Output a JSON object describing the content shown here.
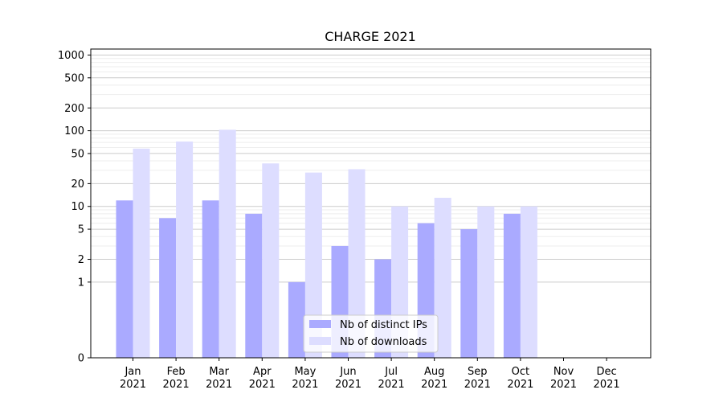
{
  "chart_data": {
    "type": "bar",
    "title": "CHARGE 2021",
    "xlabel": "",
    "ylabel": "",
    "yscale": "symlog",
    "ylim": [
      0,
      1200
    ],
    "yticks": [
      0,
      1,
      2,
      5,
      10,
      20,
      50,
      100,
      200,
      500,
      1000
    ],
    "ytick_labels": [
      "0",
      "1",
      "2",
      "5",
      "10",
      "20",
      "50",
      "100",
      "200",
      "500",
      "1000"
    ],
    "categories": [
      {
        "month": "Jan",
        "year": "2021"
      },
      {
        "month": "Feb",
        "year": "2021"
      },
      {
        "month": "Mar",
        "year": "2021"
      },
      {
        "month": "Apr",
        "year": "2021"
      },
      {
        "month": "May",
        "year": "2021"
      },
      {
        "month": "Jun",
        "year": "2021"
      },
      {
        "month": "Jul",
        "year": "2021"
      },
      {
        "month": "Aug",
        "year": "2021"
      },
      {
        "month": "Sep",
        "year": "2021"
      },
      {
        "month": "Oct",
        "year": "2021"
      },
      {
        "month": "Nov",
        "year": "2021"
      },
      {
        "month": "Dec",
        "year": "2021"
      }
    ],
    "series": [
      {
        "name": "Nb of distinct IPs",
        "color": "#aaaaff",
        "values": [
          12,
          7,
          12,
          8,
          1,
          3,
          2,
          6,
          5,
          8,
          0,
          0
        ]
      },
      {
        "name": "Nb of downloads",
        "color": "#ddddff",
        "values": [
          58,
          72,
          103,
          37,
          28,
          31,
          10,
          13,
          10,
          10,
          0,
          0
        ]
      }
    ],
    "grid": "y",
    "legend_position": "lower-center"
  }
}
